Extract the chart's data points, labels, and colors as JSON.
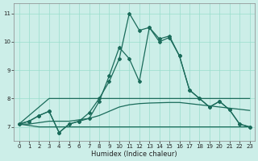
{
  "title": "",
  "xlabel": "Humidex (Indice chaleur)",
  "bg_color": "#cceee8",
  "grid_color": "#99ddcc",
  "line_color": "#1a6b5a",
  "xlim": [
    -0.5,
    23.5
  ],
  "ylim": [
    6.5,
    11.35
  ],
  "yticks": [
    7,
    8,
    9,
    10,
    11
  ],
  "xticks": [
    0,
    1,
    2,
    3,
    4,
    5,
    6,
    7,
    8,
    9,
    10,
    11,
    12,
    13,
    14,
    15,
    16,
    17,
    18,
    19,
    20,
    21,
    22,
    23
  ],
  "line1_x": [
    0,
    1,
    2,
    3,
    4,
    5,
    6,
    7,
    8,
    9,
    10,
    11,
    12,
    13,
    14,
    15,
    16,
    17,
    18,
    19,
    20,
    21,
    22,
    23
  ],
  "line1_y": [
    7.1,
    7.2,
    7.4,
    7.55,
    6.8,
    7.1,
    7.2,
    7.5,
    8.0,
    8.6,
    9.4,
    11.0,
    10.4,
    10.5,
    10.1,
    10.2,
    9.5,
    8.3,
    8.0,
    7.7,
    7.9,
    7.6,
    7.1,
    7.0
  ],
  "line2_x": [
    0,
    1,
    2,
    3,
    4,
    5,
    6,
    7,
    8,
    9,
    10,
    11,
    12,
    13,
    14,
    15,
    16,
    17,
    18,
    19,
    20,
    21,
    22,
    23
  ],
  "line2_y": [
    7.1,
    7.2,
    7.4,
    7.55,
    6.8,
    7.1,
    7.2,
    7.3,
    7.9,
    8.8,
    9.8,
    9.4,
    8.6,
    10.5,
    10.0,
    10.15,
    9.5,
    8.3,
    8.0,
    7.7,
    7.9,
    7.6,
    7.1,
    7.0
  ],
  "line3_x": [
    0,
    3,
    23
  ],
  "line3_y": [
    7.1,
    8.0,
    8.0
  ],
  "line4_x": [
    0,
    1,
    2,
    3,
    4,
    5,
    6,
    7,
    8,
    9,
    10,
    11,
    12,
    13,
    14,
    15,
    16,
    17,
    18,
    19,
    20,
    21,
    22,
    23
  ],
  "line4_y": [
    7.1,
    7.1,
    7.15,
    7.2,
    7.2,
    7.2,
    7.25,
    7.3,
    7.4,
    7.55,
    7.7,
    7.78,
    7.82,
    7.84,
    7.85,
    7.86,
    7.86,
    7.82,
    7.78,
    7.74,
    7.7,
    7.66,
    7.62,
    7.58
  ],
  "line5_x": [
    0,
    1,
    2,
    3,
    4,
    5,
    6,
    7,
    8,
    9,
    10,
    11,
    12,
    13,
    14,
    15,
    16,
    17,
    18,
    19,
    20,
    21,
    22,
    23
  ],
  "line5_y": [
    7.1,
    7.05,
    7.0,
    7.0,
    7.0,
    7.0,
    7.0,
    7.0,
    7.0,
    7.0,
    7.0,
    7.0,
    7.0,
    7.0,
    7.0,
    7.0,
    7.0,
    7.0,
    7.0,
    7.0,
    7.0,
    7.0,
    7.0,
    7.0
  ]
}
